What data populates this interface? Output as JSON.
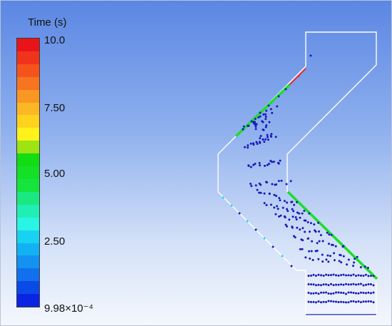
{
  "legend": {
    "title": "Time (s)",
    "labels": [
      "10.0",
      "7.50",
      "5.00",
      "2.50",
      "9.98×10⁻⁴"
    ],
    "bands": [
      "#e8141a",
      "#f0341c",
      "#f5531c",
      "#f77420",
      "#fa9622",
      "#fcb824",
      "#ffd21d",
      "#fff21a",
      "#9ee314",
      "#12dc12",
      "#14e026",
      "#15e43c",
      "#1ae880",
      "#20eeb4",
      "#28f5e4",
      "#18d2f2",
      "#12b2f2",
      "#1492f2",
      "#1270ee",
      "#0c4ae8",
      "#0a24e4"
    ]
  },
  "colors": {
    "outline": "#ffffff",
    "particle": "#1a18b8",
    "green": "#18e028",
    "red": "#e63030",
    "bottom_line": "#3a48c8"
  }
}
